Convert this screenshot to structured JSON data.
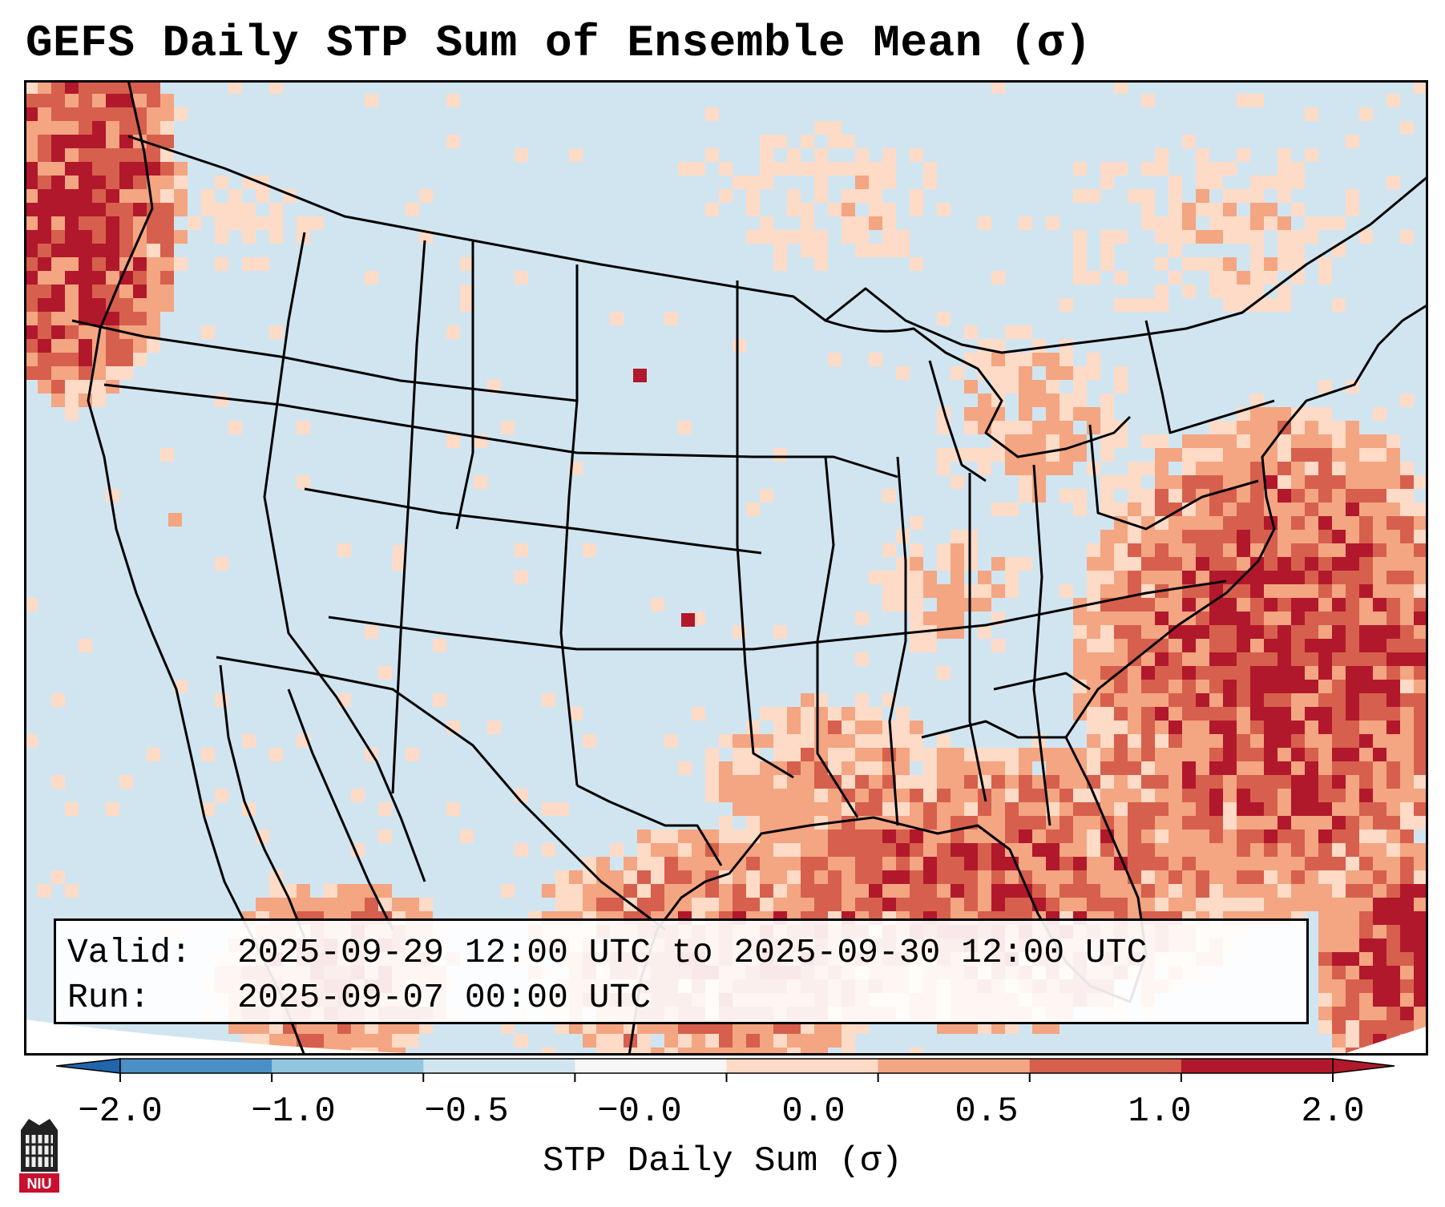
{
  "title": "GEFS Daily STP Sum of Ensemble Mean (σ)",
  "valid": {
    "valid_label": "Valid:",
    "valid_value": "2025-09-29 12:00 UTC to 2025-09-30 12:00 UTC",
    "run_label": "Run:",
    "run_value": "2025-09-07 00:00 UTC"
  },
  "colorbar": {
    "label": "STP Daily Sum (σ)",
    "ticks": [
      "−2.0",
      "−1.0",
      "−0.5",
      "−0.0",
      "0.0",
      "0.5",
      "1.0",
      "2.0"
    ],
    "colors": [
      "#4a8fc6",
      "#92c5de",
      "#d1e5f0",
      "#f7f7f7",
      "#fddbc7",
      "#f4a582",
      "#d6604d",
      "#b2182b"
    ],
    "under_color": "#2166ac",
    "over_color": "#b2182b"
  },
  "map": {
    "background_color": "#d1e5f0",
    "region": "Contiguous United States, Gulf of Mexico, western Atlantic"
  },
  "logo": {
    "text": "NIU"
  }
}
